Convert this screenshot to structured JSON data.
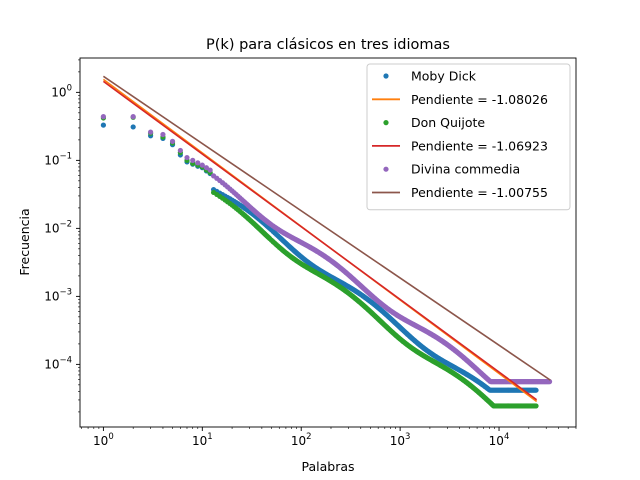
{
  "chart_data": {
    "type": "scatter",
    "title": "P(k) para clásicos en tres idiomas",
    "xlabel": "Palabras",
    "ylabel": "Frecuencia",
    "xscale": "log",
    "yscale": "log",
    "xlim": [
      0.58,
      60000
    ],
    "ylim": [
      1.2e-05,
      3.2
    ],
    "x_ticks": [
      {
        "value": 1,
        "base": "10",
        "exp": "0"
      },
      {
        "value": 10,
        "base": "10",
        "exp": "1"
      },
      {
        "value": 100,
        "base": "10",
        "exp": "2"
      },
      {
        "value": 1000,
        "base": "10",
        "exp": "3"
      },
      {
        "value": 10000,
        "base": "10",
        "exp": "4"
      }
    ],
    "y_ticks": [
      {
        "value": 0.0001,
        "base": "10",
        "exp": "−4"
      },
      {
        "value": 0.001,
        "base": "10",
        "exp": "−3"
      },
      {
        "value": 0.01,
        "base": "10",
        "exp": "−2"
      },
      {
        "value": 0.1,
        "base": "10",
        "exp": "−1"
      },
      {
        "value": 1,
        "base": "10",
        "exp": "0"
      }
    ],
    "grid": false,
    "legend_position": "top-right",
    "series": [
      {
        "name": "Moby Dick",
        "kind": "points",
        "color": "#1f77b4",
        "n_words": 24000,
        "scale": 0.62,
        "slope": -1.08,
        "first_values": [
          0.33,
          0.31,
          0.23,
          0.21,
          0.17,
          0.12,
          0.095,
          0.088,
          0.082,
          0.078,
          0.07,
          0.064
        ],
        "tail_floor": 4.17e-05
      },
      {
        "name": "Pendiente = -1.08026",
        "kind": "line",
        "color": "#ff7f0e",
        "x": [
          1,
          24000
        ],
        "y": [
          1.55,
          2.85e-05
        ]
      },
      {
        "name": "Don Quijote",
        "kind": "points",
        "color": "#2ca02c",
        "n_words": 24000,
        "scale": 0.53,
        "slope": -1.1,
        "first_values": [
          0.42,
          0.43,
          0.25,
          0.22,
          0.18,
          0.13,
          0.1,
          0.09,
          0.085,
          0.08,
          0.072,
          0.066
        ],
        "tail_floor": 2.45e-05
      },
      {
        "name": "Pendiente = -1.06923",
        "kind": "line",
        "color": "#d62728",
        "x": [
          1,
          24000
        ],
        "y": [
          1.45,
          3.02e-05
        ]
      },
      {
        "name": "Divina commedia",
        "kind": "points",
        "color": "#9467bd",
        "n_words": 33000,
        "scale": 0.78,
        "slope": -1.05,
        "first_values": [
          0.44,
          0.44,
          0.26,
          0.24,
          0.19,
          0.14,
          0.11,
          0.1,
          0.092,
          0.085,
          0.078,
          0.072
        ],
        "tail_floor": 5.58e-05
      },
      {
        "name": "Pendiente = -1.00755",
        "kind": "line",
        "color": "#8c564b",
        "x": [
          1,
          33000
        ],
        "y": [
          1.72,
          5.87e-05
        ]
      }
    ]
  }
}
